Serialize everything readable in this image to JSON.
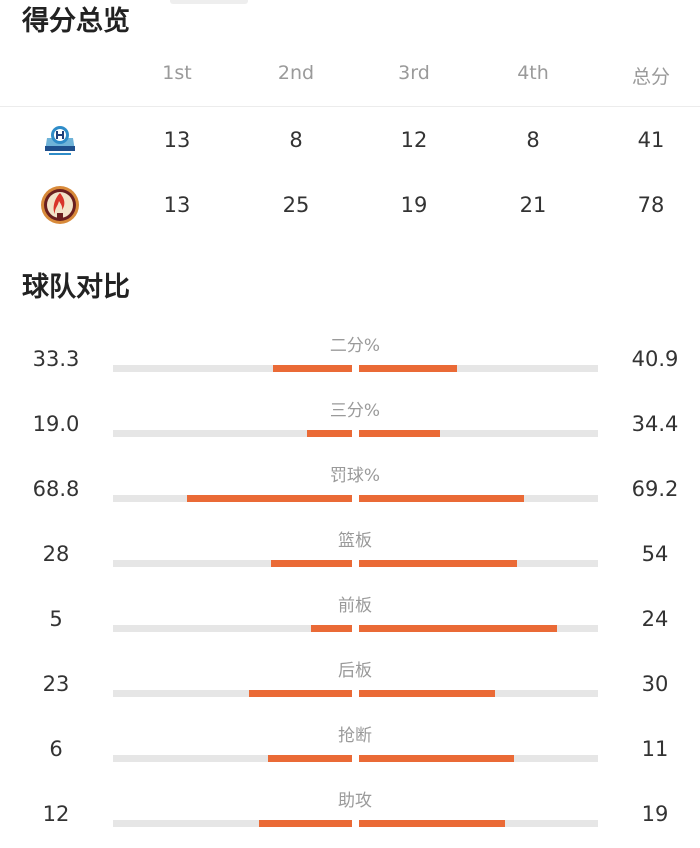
{
  "score_overview": {
    "title": "得分总览",
    "headers": [
      "1st",
      "2nd",
      "3rd",
      "4th",
      "总分"
    ],
    "teams": [
      {
        "logo": "jilin-team-logo",
        "scores": [
          "13",
          "8",
          "12",
          "8",
          "41"
        ]
      },
      {
        "logo": "flame-team-logo",
        "scores": [
          "13",
          "25",
          "19",
          "21",
          "78"
        ]
      }
    ]
  },
  "team_comparison": {
    "title": "球队对比",
    "colors": {
      "fill": "#ea6a36",
      "track": "#e6e6e6"
    },
    "stats": [
      {
        "label": "二分%",
        "left": "33.3",
        "right": "40.9",
        "left_fill": 0.33,
        "right_fill": 0.41
      },
      {
        "label": "三分%",
        "left": "19.0",
        "right": "34.4",
        "left_fill": 0.19,
        "right_fill": 0.34
      },
      {
        "label": "罚球%",
        "left": "68.8",
        "right": "69.2",
        "left_fill": 0.69,
        "right_fill": 0.69
      },
      {
        "label": "篮板",
        "left": "28",
        "right": "54",
        "left_fill": 0.34,
        "right_fill": 0.66
      },
      {
        "label": "前板",
        "left": "5",
        "right": "24",
        "left_fill": 0.17,
        "right_fill": 0.83
      },
      {
        "label": "后板",
        "left": "23",
        "right": "30",
        "left_fill": 0.43,
        "right_fill": 0.57
      },
      {
        "label": "抢断",
        "left": "6",
        "right": "11",
        "left_fill": 0.35,
        "right_fill": 0.65
      },
      {
        "label": "助攻",
        "left": "12",
        "right": "19",
        "left_fill": 0.39,
        "right_fill": 0.61
      }
    ]
  }
}
